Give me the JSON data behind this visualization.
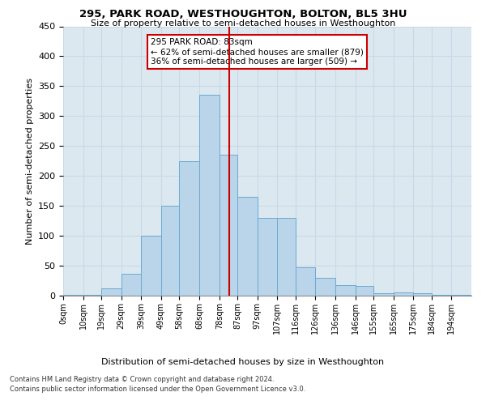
{
  "title": "295, PARK ROAD, WESTHOUGHTON, BOLTON, BL5 3HU",
  "subtitle": "Size of property relative to semi-detached houses in Westhoughton",
  "xlabel": "Distribution of semi-detached houses by size in Westhoughton",
  "ylabel": "Number of semi-detached properties",
  "bin_labels": [
    "0sqm",
    "10sqm",
    "19sqm",
    "29sqm",
    "39sqm",
    "49sqm",
    "58sqm",
    "68sqm",
    "78sqm",
    "87sqm",
    "97sqm",
    "107sqm",
    "116sqm",
    "126sqm",
    "136sqm",
    "146sqm",
    "155sqm",
    "165sqm",
    "175sqm",
    "184sqm",
    "194sqm"
  ],
  "bar_values": [
    2,
    2,
    12,
    37,
    100,
    150,
    225,
    335,
    235,
    165,
    130,
    130,
    47,
    30,
    18,
    16,
    4,
    5,
    4,
    2,
    2
  ],
  "bar_color": "#bad4ea",
  "bar_edge_color": "#6aaad4",
  "vline_x": 83,
  "vline_color": "#cc0000",
  "annotation_line1": "295 PARK ROAD: 83sqm",
  "annotation_line2": "← 62% of semi-detached houses are smaller (879)",
  "annotation_line3": "36% of semi-detached houses are larger (509) →",
  "annotation_box_color": "#cc0000",
  "ylim": [
    0,
    450
  ],
  "yticks": [
    0,
    50,
    100,
    150,
    200,
    250,
    300,
    350,
    400,
    450
  ],
  "grid_color": "#c8d8e8",
  "background_color": "#dce8f0",
  "footnote1": "Contains HM Land Registry data © Crown copyright and database right 2024.",
  "footnote2": "Contains public sector information licensed under the Open Government Licence v3.0."
}
